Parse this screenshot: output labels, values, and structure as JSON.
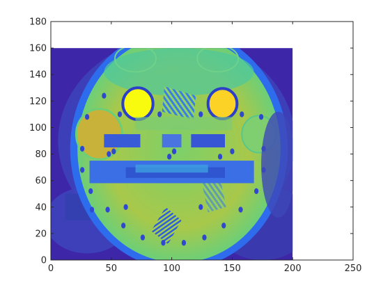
{
  "chart_data": {
    "type": "heatmap",
    "title": "",
    "xlabel": "",
    "ylabel": "",
    "xlim": [
      0,
      250
    ],
    "ylim": [
      0,
      180
    ],
    "x_ticks": [
      0,
      50,
      100,
      150,
      200,
      250
    ],
    "y_ticks": [
      0,
      20,
      40,
      60,
      80,
      100,
      120,
      140,
      160,
      180
    ],
    "x_tick_labels": [
      "0",
      "50",
      "100",
      "150",
      "200",
      "250"
    ],
    "y_tick_labels": [
      "0",
      "20",
      "40",
      "60",
      "80",
      "100",
      "120",
      "140",
      "160",
      "180"
    ],
    "image_extent": {
      "x": [
        0,
        200
      ],
      "y": [
        0,
        160
      ]
    },
    "image_description": "Parula-colormap image of a circular phantom cross-section",
    "colormap": [
      "#3e26a8",
      "#2d6ff0",
      "#17b5cf",
      "#52c97a",
      "#b8c43a",
      "#fbd225",
      "#f9fb0e"
    ],
    "grid": false,
    "box": true
  }
}
